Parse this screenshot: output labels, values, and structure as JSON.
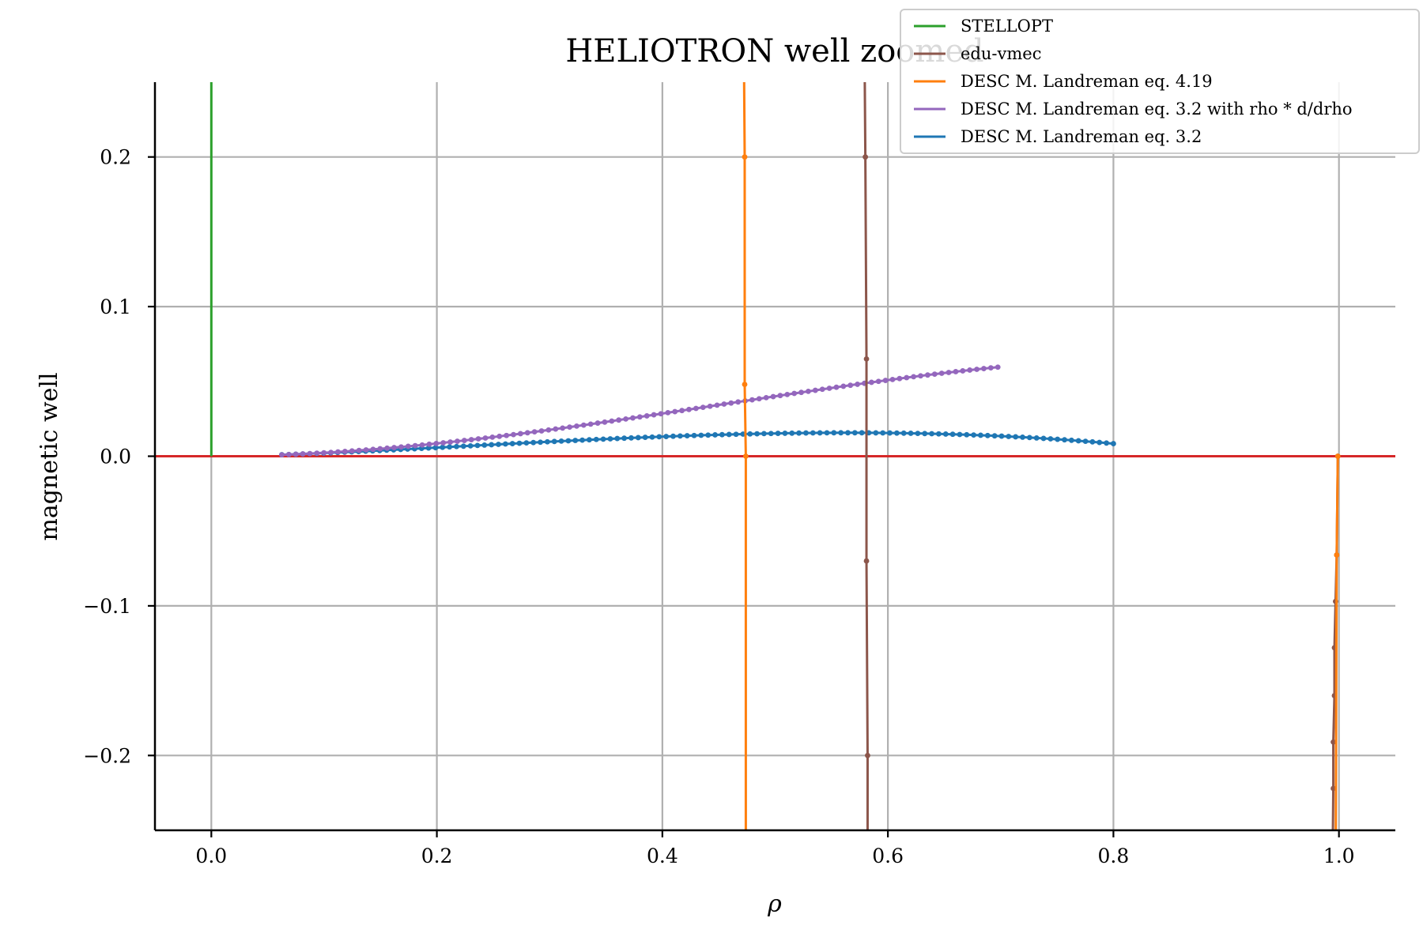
{
  "chart_data": {
    "type": "line",
    "title": "HELIOTRON well zoomed",
    "xlabel": "ρ",
    "ylabel": "magnetic well",
    "xlim": [
      -0.05,
      1.05
    ],
    "ylim": [
      -0.25,
      0.25
    ],
    "xticks": [
      0.0,
      0.2,
      0.4,
      0.6,
      0.8,
      1.0
    ],
    "xtick_labels": [
      "0.0",
      "0.2",
      "0.4",
      "0.6",
      "0.8",
      "1.0"
    ],
    "yticks": [
      -0.2,
      -0.1,
      0.0,
      0.1,
      0.2
    ],
    "ytick_labels": [
      "−0.2",
      "−0.1",
      "0.0",
      "0.1",
      "0.2"
    ],
    "grid": true,
    "legend_position": "top-right",
    "reference_line": {
      "y": 0.0,
      "color": "#d62728"
    },
    "series": [
      {
        "name": "STELLOPT",
        "color": "#2ca02c",
        "marker": false,
        "points": [
          [
            0.0,
            0.0
          ],
          [
            0.0,
            0.3
          ]
        ]
      },
      {
        "name": "edu-vmec",
        "color": "#8c564b",
        "marker": true,
        "points": [
          [
            0.579,
            0.3
          ],
          [
            0.58,
            0.2
          ],
          [
            0.581,
            0.065
          ],
          [
            0.581,
            -0.07
          ],
          [
            0.582,
            -0.2
          ],
          [
            0.582,
            -0.3
          ]
        ],
        "points_b": [
          [
            0.994,
            -0.3
          ],
          [
            0.995,
            -0.222
          ],
          [
            0.995,
            -0.191
          ],
          [
            0.996,
            -0.16
          ],
          [
            0.996,
            -0.128
          ],
          [
            0.997,
            -0.097
          ],
          [
            0.998,
            -0.066
          ],
          [
            0.999,
            0.0
          ]
        ]
      },
      {
        "name": "DESC M. Landreman eq. 4.19",
        "color": "#ff7f0e",
        "marker": true,
        "points": [
          [
            0.472,
            0.3
          ],
          [
            0.473,
            0.2
          ],
          [
            0.473,
            0.048
          ],
          [
            0.474,
            0.0
          ],
          [
            0.474,
            -0.3
          ]
        ],
        "points_b": [
          [
            0.997,
            -0.3
          ],
          [
            0.998,
            -0.066
          ],
          [
            0.999,
            0.0
          ]
        ]
      },
      {
        "name": "DESC M. Landreman eq. 3.2 with rho * d/drho",
        "color": "#9467bd",
        "marker": true,
        "model": {
          "a": 0.2183,
          "p": 1.96,
          "b": 0.1583,
          "q": 3.3
        },
        "x_range": [
          0.0625,
          0.6975
        ]
      },
      {
        "name": "DESC M. Landreman eq. 3.2",
        "color": "#1f77b4",
        "marker": true,
        "model": {
          "a": 0.092,
          "p": 1.61,
          "b": 0.1045,
          "q": 2.81
        },
        "x_range": [
          0.0625,
          0.8
        ]
      }
    ]
  }
}
